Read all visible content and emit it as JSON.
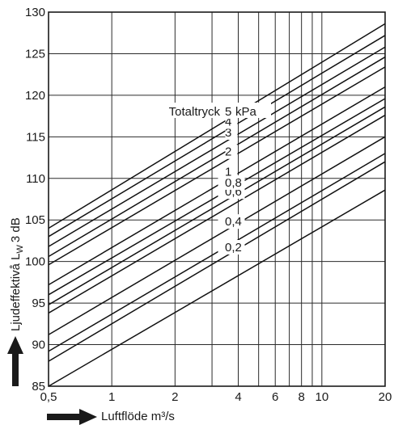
{
  "chart_data": {
    "type": "line",
    "title": "",
    "xlabel": "Luftflöde m³/s",
    "ylabel_parts": {
      "main": "Ljudeffektivå L",
      "sub": "W",
      "tail": "3 dB"
    },
    "x_scale": "log",
    "xlim": [
      0.5,
      20
    ],
    "ylim": [
      85,
      130
    ],
    "x_ticks": [
      {
        "value": 0.5,
        "label": "0,5"
      },
      {
        "value": 1,
        "label": "1"
      },
      {
        "value": 2,
        "label": "2"
      },
      {
        "value": 4,
        "label": "4"
      },
      {
        "value": 6,
        "label": "6"
      },
      {
        "value": 8,
        "label": "8"
      },
      {
        "value": 10,
        "label": "10"
      },
      {
        "value": 20,
        "label": "20"
      }
    ],
    "x_grid": [
      0.5,
      1,
      2,
      3,
      4,
      5,
      6,
      7,
      8,
      9,
      10,
      20
    ],
    "y_ticks": [
      85,
      90,
      95,
      100,
      105,
      110,
      115,
      120,
      125,
      130
    ],
    "grid": true,
    "legend_title": "Totaltryck",
    "legend_unit": "kPa",
    "series": [
      {
        "label": "",
        "points": [
          [
            0.5,
            85.0
          ],
          [
            20,
            108.6
          ]
        ]
      },
      {
        "label": "0,2",
        "points": [
          [
            0.5,
            88.0
          ],
          [
            20,
            112.0
          ]
        ]
      },
      {
        "label": "",
        "points": [
          [
            0.5,
            89.2
          ],
          [
            20,
            113.0
          ]
        ]
      },
      {
        "label": "0,4",
        "points": [
          [
            0.5,
            91.2
          ],
          [
            20,
            115.0
          ]
        ]
      },
      {
        "label": "",
        "points": [
          [
            0.5,
            93.8
          ],
          [
            20,
            117.6
          ]
        ]
      },
      {
        "label": "0,6",
        "points": [
          [
            0.5,
            94.8
          ],
          [
            20,
            118.6
          ]
        ]
      },
      {
        "label": "0,8",
        "points": [
          [
            0.5,
            96.0
          ],
          [
            20,
            119.6
          ]
        ]
      },
      {
        "label": "1",
        "points": [
          [
            0.5,
            97.2
          ],
          [
            20,
            121.0
          ]
        ]
      },
      {
        "label": "2",
        "points": [
          [
            0.5,
            99.6
          ],
          [
            20,
            123.4
          ]
        ]
      },
      {
        "label": "",
        "points": [
          [
            0.5,
            100.6
          ],
          [
            20,
            124.6
          ]
        ]
      },
      {
        "label": "3",
        "points": [
          [
            0.5,
            101.8
          ],
          [
            20,
            125.8
          ]
        ]
      },
      {
        "label": "4",
        "points": [
          [
            0.5,
            103.0
          ],
          [
            20,
            127.2
          ]
        ]
      },
      {
        "label": "5",
        "points": [
          [
            0.5,
            104.0
          ],
          [
            20,
            128.6
          ]
        ]
      }
    ]
  }
}
